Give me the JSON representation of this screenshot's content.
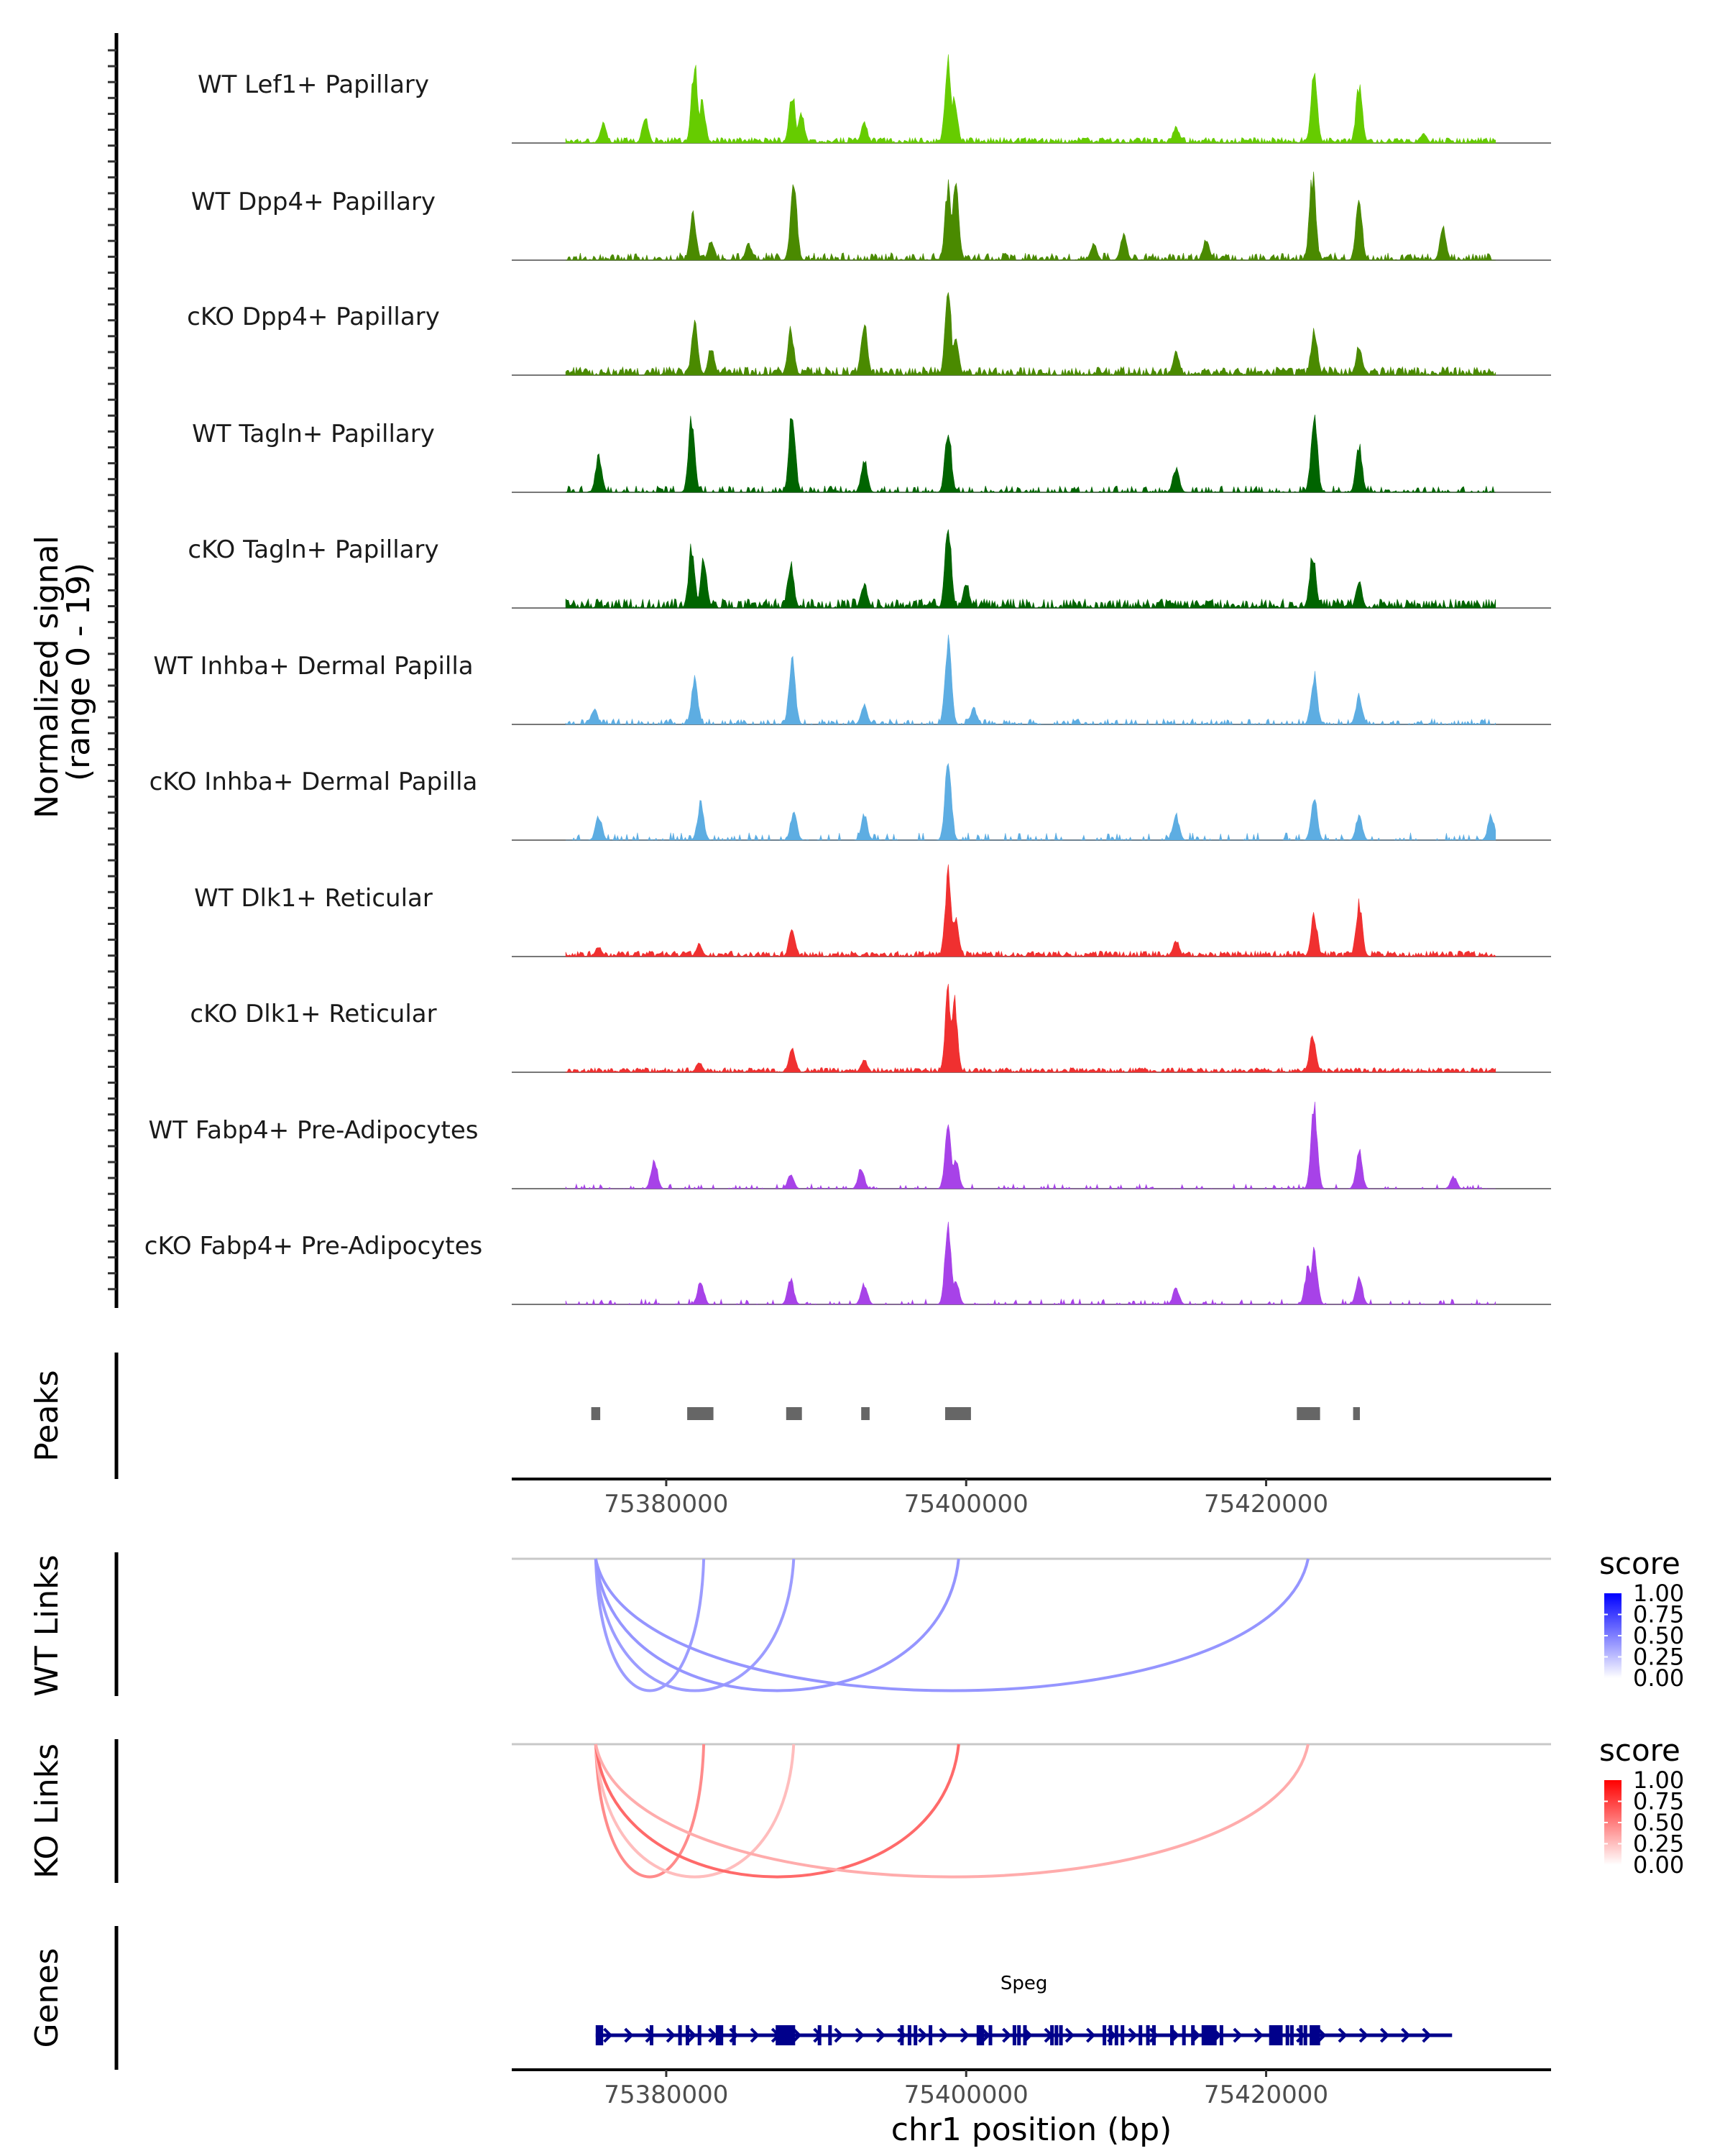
{
  "chart_data": {
    "type": "area",
    "title": "",
    "ylabel": "Normalized signal\n(range 0 - 19)",
    "ylabel_lines": [
      "Normalized signal",
      "(range 0 - 19)"
    ],
    "ylim": [
      0,
      19
    ],
    "xlabel": "chr1 position (bp)",
    "chromosome": "chr1",
    "xlim": [
      75369700,
      75439000
    ],
    "xticks": [
      75380000,
      75400000,
      75420000
    ],
    "xtick_labels": [
      "75380000",
      "75400000",
      "75420000"
    ],
    "coverage_tracks": [
      {
        "name": "WT Lef1+ Papillary",
        "color": "#66cc00",
        "noise": 0.06,
        "sparsity": 0.1,
        "peaks": [
          [
            75375800,
            0.25
          ],
          [
            75378600,
            0.3
          ],
          [
            75381900,
            0.95
          ],
          [
            75382400,
            0.5
          ],
          [
            75388400,
            0.6
          ],
          [
            75389000,
            0.35
          ],
          [
            75393200,
            0.25
          ],
          [
            75398800,
            1.0
          ],
          [
            75399200,
            0.55
          ],
          [
            75414000,
            0.2
          ],
          [
            75423200,
            0.85
          ],
          [
            75426200,
            0.7
          ],
          [
            75430500,
            0.12
          ]
        ]
      },
      {
        "name": "WT Dpp4+ Papillary",
        "color": "#4a8a00",
        "noise": 0.08,
        "sparsity": 0.35,
        "peaks": [
          [
            75381800,
            0.55
          ],
          [
            75383000,
            0.25
          ],
          [
            75385500,
            0.2
          ],
          [
            75388500,
            1.0
          ],
          [
            75398800,
            0.9
          ],
          [
            75399300,
            0.95
          ],
          [
            75408500,
            0.2
          ],
          [
            75410500,
            0.3
          ],
          [
            75416000,
            0.25
          ],
          [
            75423100,
            1.0
          ],
          [
            75426200,
            0.7
          ],
          [
            75431800,
            0.4
          ]
        ]
      },
      {
        "name": "cKO Dpp4+ Papillary",
        "color": "#4a8a00",
        "noise": 0.09,
        "sparsity": 0.15,
        "peaks": [
          [
            75381900,
            0.6
          ],
          [
            75383000,
            0.35
          ],
          [
            75388300,
            0.55
          ],
          [
            75393200,
            0.65
          ],
          [
            75398800,
            1.0
          ],
          [
            75399300,
            0.4
          ],
          [
            75414000,
            0.3
          ],
          [
            75423200,
            0.55
          ],
          [
            75426200,
            0.35
          ]
        ]
      },
      {
        "name": "WT Tagln+ Papillary",
        "color": "#006400",
        "noise": 0.07,
        "sparsity": 0.55,
        "peaks": [
          [
            75375500,
            0.45
          ],
          [
            75381700,
            0.9
          ],
          [
            75388400,
            1.0
          ],
          [
            75393200,
            0.4
          ],
          [
            75398800,
            0.75
          ],
          [
            75414000,
            0.3
          ],
          [
            75423200,
            1.0
          ],
          [
            75426200,
            0.55
          ]
        ]
      },
      {
        "name": "cKO Tagln+ Papillary",
        "color": "#006400",
        "noise": 0.1,
        "sparsity": 0.2,
        "peaks": [
          [
            75381700,
            0.75
          ],
          [
            75382500,
            0.6
          ],
          [
            75388300,
            0.55
          ],
          [
            75393200,
            0.3
          ],
          [
            75398800,
            0.95
          ],
          [
            75400000,
            0.3
          ],
          [
            75423100,
            0.65
          ],
          [
            75426200,
            0.3
          ]
        ]
      },
      {
        "name": "WT Inhba+ Dermal Papilla",
        "color": "#5dade2",
        "noise": 0.06,
        "sparsity": 0.5,
        "peaks": [
          [
            75375200,
            0.2
          ],
          [
            75381900,
            0.55
          ],
          [
            75388400,
            0.8
          ],
          [
            75393200,
            0.25
          ],
          [
            75398800,
            1.0
          ],
          [
            75400500,
            0.2
          ],
          [
            75423200,
            0.6
          ],
          [
            75426200,
            0.35
          ]
        ]
      },
      {
        "name": "cKO Inhba+ Dermal Papilla",
        "color": "#5dade2",
        "noise": 0.08,
        "sparsity": 0.75,
        "peaks": [
          [
            75375500,
            0.3
          ],
          [
            75382300,
            0.45
          ],
          [
            75388500,
            0.35
          ],
          [
            75393200,
            0.3
          ],
          [
            75398800,
            1.0
          ],
          [
            75414000,
            0.3
          ],
          [
            75423200,
            0.5
          ],
          [
            75426200,
            0.3
          ],
          [
            75435000,
            0.3
          ]
        ]
      },
      {
        "name": "WT Dlk1+ Reticular",
        "color": "#f03030",
        "noise": 0.06,
        "sparsity": 0.15,
        "peaks": [
          [
            75375500,
            0.12
          ],
          [
            75382200,
            0.15
          ],
          [
            75388400,
            0.35
          ],
          [
            75398800,
            1.0
          ],
          [
            75399300,
            0.5
          ],
          [
            75414000,
            0.2
          ],
          [
            75423200,
            0.5
          ],
          [
            75426200,
            0.65
          ]
        ]
      },
      {
        "name": "cKO Dlk1+ Reticular",
        "color": "#f03030",
        "noise": 0.05,
        "sparsity": 0.15,
        "peaks": [
          [
            75382200,
            0.12
          ],
          [
            75388400,
            0.3
          ],
          [
            75393200,
            0.15
          ],
          [
            75398800,
            0.95
          ],
          [
            75399200,
            0.9
          ],
          [
            75423100,
            0.45
          ]
        ]
      },
      {
        "name": "WT Fabp4+ Pre-Adipocytes",
        "color": "#a742e8",
        "noise": 0.05,
        "sparsity": 0.8,
        "peaks": [
          [
            75379200,
            0.35
          ],
          [
            75388300,
            0.18
          ],
          [
            75393000,
            0.25
          ],
          [
            75398800,
            0.8
          ],
          [
            75399300,
            0.35
          ],
          [
            75423200,
            1.0
          ],
          [
            75426200,
            0.45
          ],
          [
            75432500,
            0.15
          ]
        ]
      },
      {
        "name": "cKO Fabp4+ Pre-Adipocytes",
        "color": "#a742e8",
        "noise": 0.06,
        "sparsity": 0.78,
        "peaks": [
          [
            75382300,
            0.3
          ],
          [
            75388300,
            0.3
          ],
          [
            75393200,
            0.25
          ],
          [
            75398800,
            1.0
          ],
          [
            75399300,
            0.3
          ],
          [
            75414000,
            0.2
          ],
          [
            75422800,
            0.45
          ],
          [
            75423200,
            0.7
          ],
          [
            75426200,
            0.35
          ]
        ]
      }
    ],
    "peaks_track": {
      "label": "Peaks",
      "color": "#666666",
      "regions": [
        [
          75375000,
          75375600
        ],
        [
          75381400,
          75383150
        ],
        [
          75388000,
          75389050
        ],
        [
          75393000,
          75393560
        ],
        [
          75398600,
          75400320
        ],
        [
          75422050,
          75423600
        ],
        [
          75425800,
          75426250
        ]
      ]
    },
    "links_tracks": [
      {
        "label": "WT Links",
        "legend_title": "score",
        "low_color": "#ffffff",
        "high_color": "#0000ff",
        "links": [
          {
            "start": 75375300,
            "end": 75382500,
            "score": 0.3
          },
          {
            "start": 75375300,
            "end": 75388500,
            "score": 0.3
          },
          {
            "start": 75375300,
            "end": 75399500,
            "score": 0.32
          },
          {
            "start": 75375300,
            "end": 75422800,
            "score": 0.32
          }
        ]
      },
      {
        "label": "KO Links",
        "legend_title": "score",
        "low_color": "#ffffff",
        "high_color": "#ff0000",
        "links": [
          {
            "start": 75375300,
            "end": 75382500,
            "score": 0.35
          },
          {
            "start": 75375300,
            "end": 75388500,
            "score": 0.2
          },
          {
            "start": 75375300,
            "end": 75399500,
            "score": 0.45
          },
          {
            "start": 75375300,
            "end": 75422800,
            "score": 0.25
          }
        ]
      }
    ],
    "legend_ticks": [
      "1.00",
      "0.75",
      "0.50",
      "0.25",
      "0.00"
    ],
    "genes_track": {
      "label": "Genes",
      "color": "#00008b",
      "gene_name": "Speg",
      "strand": "+",
      "start": 75375300,
      "end": 75432400,
      "exons": [
        [
          75375300,
          75375800
        ],
        [
          75378900,
          75379000
        ],
        [
          75380800,
          75380900
        ],
        [
          75381300,
          75381400
        ],
        [
          75382100,
          75382200
        ],
        [
          75383300,
          75383800
        ],
        [
          75384400,
          75384500
        ],
        [
          75387300,
          75388600
        ],
        [
          75390100,
          75390200
        ],
        [
          75390800,
          75390900
        ],
        [
          75395600,
          75395700
        ],
        [
          75396100,
          75396200
        ],
        [
          75396500,
          75396600
        ],
        [
          75397500,
          75397600
        ],
        [
          75400700,
          75401200
        ],
        [
          75401500,
          75401600
        ],
        [
          75403100,
          75403200
        ],
        [
          75403400,
          75403500
        ],
        [
          75403800,
          75403900
        ],
        [
          75405600,
          75405700
        ],
        [
          75405900,
          75406000
        ],
        [
          75406200,
          75406300
        ],
        [
          75409100,
          75409200
        ],
        [
          75409500,
          75409600
        ],
        [
          75409900,
          75410000
        ],
        [
          75410300,
          75410400
        ],
        [
          75411500,
          75411600
        ],
        [
          75412000,
          75412100
        ],
        [
          75412400,
          75412500
        ],
        [
          75413600,
          75413700
        ],
        [
          75414400,
          75414500
        ],
        [
          75415000,
          75415100
        ],
        [
          75415700,
          75416700
        ],
        [
          75416900,
          75417000
        ],
        [
          75420200,
          75421100
        ],
        [
          75421300,
          75421400
        ],
        [
          75421600,
          75421700
        ],
        [
          75422200,
          75422300
        ],
        [
          75422500,
          75422600
        ],
        [
          75422900,
          75423600
        ]
      ]
    }
  }
}
